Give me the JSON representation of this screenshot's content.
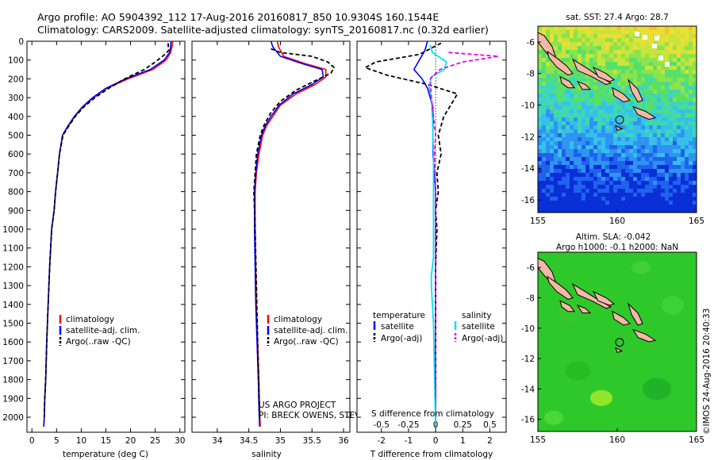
{
  "header": {
    "line1": "Argo profile: AO 5904392_112 17-Aug-2016 20160817_850 10.9304S 160.1544E",
    "line2": "Climatology: CARS2009. Satellite-adjusted climatology: synTS_20160817.nc (0.32d earlier)"
  },
  "credit": {
    "line1": "US ARGO PROJECT",
    "line2": "PI: BRECK OWENS, STEVE JAYNE, P.E. ROBBINS"
  },
  "side_stamp": "©IMOS 24-Aug-2016 20:40:33",
  "colors": {
    "climatology": "#ff0000",
    "satellite": "#0000ff",
    "argo": "#000000",
    "sal_satellite": "#00e5ee",
    "sal_argo": "#ee00ee",
    "land": "#f4b8a8"
  },
  "chart_data": [
    {
      "type": "line",
      "xlabel": "temperature (deg C)",
      "ylabel": "",
      "xlim": [
        -1,
        31
      ],
      "ylim": [
        2080,
        0
      ],
      "xticks": [
        0,
        5,
        10,
        15,
        20,
        25,
        30
      ],
      "yticks": [
        0,
        100,
        200,
        300,
        400,
        500,
        600,
        700,
        800,
        900,
        1000,
        1100,
        1200,
        1300,
        1400,
        1500,
        1600,
        1700,
        1800,
        1900,
        2000
      ],
      "legend": [
        "climatology",
        "satellite-adj. clim.",
        "Argo(..raw -QC)"
      ],
      "series": [
        {
          "name": "climatology",
          "color": "#ff0000",
          "x": [
            28.5,
            28.4,
            28.1,
            27.2,
            24.5,
            19.5,
            15.2,
            12.5,
            10.3,
            8.7,
            7.4,
            6.2,
            5.6,
            5.2,
            4.8,
            4.5,
            4.0,
            3.6,
            3.3,
            3.0,
            2.8,
            2.6,
            2.5,
            2.4
          ],
          "y": [
            0,
            30,
            60,
            100,
            150,
            200,
            250,
            300,
            350,
            400,
            450,
            500,
            600,
            700,
            800,
            900,
            1000,
            1200,
            1400,
            1600,
            1800,
            1900,
            2000,
            2050
          ]
        },
        {
          "name": "satellite-adj. clim.",
          "color": "#0000ff",
          "x": [
            28.2,
            28.1,
            27.9,
            26.8,
            24.0,
            19.0,
            15.0,
            12.3,
            10.2,
            8.6,
            7.3,
            6.2,
            5.6,
            5.2,
            4.8,
            4.5,
            4.0,
            3.6,
            3.3,
            3.0,
            2.8,
            2.6,
            2.5,
            2.4
          ],
          "y": [
            0,
            30,
            60,
            100,
            150,
            200,
            250,
            300,
            350,
            400,
            450,
            500,
            600,
            700,
            800,
            900,
            1000,
            1200,
            1400,
            1600,
            1800,
            1900,
            2000,
            2050
          ]
        },
        {
          "name": "Argo(..raw -QC)",
          "color": "#000000",
          "x": [
            27.6,
            27.7,
            26.5,
            25.0,
            22.8,
            18.8,
            15.6,
            12.8,
            10.5,
            8.8,
            7.5,
            6.3,
            5.6,
            5.2,
            4.8,
            4.5,
            4.0,
            3.6,
            3.3,
            3.0,
            2.8,
            2.6,
            2.5
          ],
          "y": [
            10,
            50,
            80,
            110,
            150,
            200,
            250,
            300,
            350,
            400,
            450,
            500,
            600,
            700,
            800,
            900,
            1000,
            1200,
            1400,
            1600,
            1800,
            1900,
            2000
          ]
        }
      ]
    },
    {
      "type": "line",
      "xlabel": "salinity",
      "ylabel": "",
      "xlim": [
        33.6,
        36.1
      ],
      "ylim": [
        2080,
        0
      ],
      "xticks": [
        34,
        34.5,
        35,
        35.5,
        36
      ],
      "yticks": [
        0,
        100,
        200,
        300,
        400,
        500,
        600,
        700,
        800,
        900,
        1000,
        1100,
        1200,
        1300,
        1400,
        1500,
        1600,
        1700,
        1800,
        1900,
        2000
      ],
      "legend": [
        "climatology",
        "satellite-adj. clim.",
        "Argo(..raw -QC)"
      ],
      "series": [
        {
          "name": "climatology",
          "color": "#ff0000",
          "x": [
            34.95,
            34.97,
            35.05,
            35.4,
            35.72,
            35.72,
            35.55,
            35.25,
            35.0,
            34.88,
            34.78,
            34.72,
            34.66,
            34.62,
            34.6,
            34.6,
            34.6,
            34.61,
            34.62,
            34.64,
            34.66,
            34.67,
            34.68
          ],
          "y": [
            0,
            30,
            80,
            120,
            150,
            190,
            230,
            280,
            340,
            400,
            450,
            500,
            600,
            700,
            800,
            900,
            1000,
            1200,
            1400,
            1600,
            1800,
            1950,
            2050
          ]
        },
        {
          "name": "satellite-adj. clim.",
          "color": "#0000ff",
          "x": [
            34.85,
            34.88,
            35.0,
            35.35,
            35.66,
            35.68,
            35.5,
            35.2,
            34.98,
            34.85,
            34.76,
            34.7,
            34.64,
            34.61,
            34.59,
            34.59,
            34.59,
            34.6,
            34.61,
            34.63,
            34.65,
            34.66,
            34.67
          ],
          "y": [
            0,
            30,
            80,
            120,
            150,
            190,
            230,
            280,
            340,
            400,
            450,
            500,
            600,
            700,
            800,
            900,
            1000,
            1200,
            1400,
            1600,
            1800,
            1950,
            2050
          ]
        },
        {
          "name": "Argo(..raw -QC)",
          "color": "#000000",
          "x": [
            34.85,
            35.0,
            35.5,
            35.75,
            35.85,
            35.8,
            35.55,
            35.25,
            35.0,
            34.85,
            34.75,
            34.68,
            34.62,
            34.6,
            34.58,
            34.6,
            34.62,
            34.64,
            34.66,
            34.67
          ],
          "y": [
            40,
            60,
            80,
            110,
            140,
            170,
            210,
            260,
            320,
            380,
            440,
            500,
            600,
            700,
            800,
            1000,
            1300,
            1600,
            1900,
            2000
          ]
        }
      ]
    },
    {
      "type": "line",
      "xlabel": "T difference from climatology",
      "x2label": "S difference from climatology",
      "ylabel": "",
      "xlim": [
        -2.9,
        2.6
      ],
      "ylim": [
        2080,
        0
      ],
      "xticks": [
        -2,
        -1,
        0,
        1,
        2
      ],
      "x2ticks": [
        -0.5,
        -0.25,
        0,
        0.25,
        0.5
      ],
      "x2lim": [
        -0.725,
        0.65
      ],
      "yticks": [
        0,
        100,
        200,
        300,
        400,
        500,
        600,
        700,
        800,
        900,
        1000,
        1100,
        1200,
        1300,
        1400,
        1500,
        1600,
        1700,
        1800,
        1900,
        2000
      ],
      "legend_titles": [
        "temperature",
        "salinity"
      ],
      "legend": [
        "satellite",
        "Argo(-adj)",
        "satellite",
        "Argo(-adj)"
      ],
      "series": [
        {
          "name": "satellite",
          "color": "#0000ff",
          "x": [
            -0.3,
            -0.4,
            -0.6,
            -0.8,
            -0.5,
            -0.3,
            -0.2,
            -0.1,
            -0.1,
            -0.1,
            -0.1,
            -0.05,
            0,
            0,
            0,
            0,
            0,
            0,
            0,
            0
          ],
          "y": [
            0,
            50,
            100,
            150,
            200,
            250,
            300,
            350,
            400,
            500,
            600,
            700,
            800,
            900,
            1000,
            1200,
            1400,
            1600,
            1800,
            2050
          ]
        },
        {
          "name": "Argo(-adj)",
          "color": "#000000",
          "x": [
            0.2,
            -0.6,
            -2.2,
            -2.6,
            -1.8,
            -0.3,
            0.8,
            0.6,
            0.3,
            0.1,
            0.2,
            0.05,
            0.1,
            0,
            0.05,
            0,
            0,
            0,
            0
          ],
          "y": [
            10,
            70,
            110,
            140,
            180,
            230,
            280,
            330,
            400,
            500,
            600,
            700,
            800,
            900,
            1000,
            1200,
            1400,
            1600,
            1800
          ]
        },
        {
          "name": "satellite",
          "color": "#00e5ee",
          "x": [
            -0.05,
            -0.03,
            0.1,
            0.08,
            -0.04,
            -0.06,
            -0.04,
            -0.03,
            -0.02,
            -0.02,
            -0.02,
            -0.02,
            -0.02,
            -0.03,
            -0.04,
            -0.04,
            -0.02,
            -0.01,
            0
          ],
          "y": [
            20,
            60,
            110,
            150,
            190,
            250,
            300,
            400,
            600,
            800,
            1000,
            1100,
            1150,
            1200,
            1250,
            1300,
            1500,
            1800,
            2050
          ]
        },
        {
          "name": "Argo(-adj)",
          "color": "#ee00ee",
          "x": [
            0.12,
            0.35,
            0.58,
            0.25,
            0.04,
            -0.05,
            -0.04,
            -0.02,
            0,
            -0.01,
            0,
            0,
            0,
            0
          ],
          "y": [
            60,
            70,
            80,
            110,
            150,
            200,
            300,
            400,
            500,
            600,
            800,
            1000,
            1400,
            1900
          ]
        }
      ]
    },
    {
      "type": "heatmap",
      "title": "sat. SST: 27.4  Argo: 28.7",
      "xlim": [
        155,
        165
      ],
      "ylim": [
        -16.8,
        -5
      ],
      "xticks": [
        155,
        160,
        165
      ],
      "yticks": [
        -6,
        -8,
        -10,
        -12,
        -14,
        -16
      ],
      "argo_position": [
        160.15,
        -10.93
      ]
    },
    {
      "type": "heatmap",
      "title_line1": "Altim. SLA: -0.042",
      "title_line2": "Argo h1000: -0.1  h2000: NaN",
      "xlim": [
        155,
        165
      ],
      "ylim": [
        -16.8,
        -5
      ],
      "xticks": [
        155,
        160,
        165
      ],
      "yticks": [
        -6,
        -8,
        -10,
        -12,
        -14,
        -16
      ],
      "argo_position": [
        160.15,
        -10.93
      ]
    }
  ]
}
